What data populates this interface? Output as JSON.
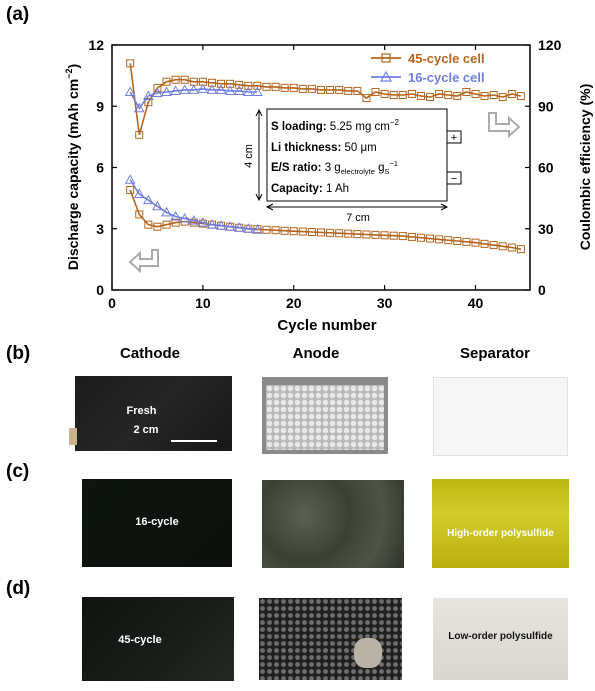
{
  "panels": {
    "a": "(a)",
    "b": "(b)",
    "c": "(c)",
    "d": "(d)"
  },
  "columns": [
    "Cathode",
    "Anode",
    "Separator"
  ],
  "photo_labels": {
    "cathode_b": "Fresh",
    "scalebar": "2 cm",
    "cathode_c": "16-cycle",
    "separator_c": "High-order polysulfide",
    "cathode_d": "45-cycle",
    "separator_d": "Low-order polysulfide"
  },
  "colors": {
    "cell45": "#B5651D",
    "cell16": "#6F7FE0",
    "separator_yellow": "#C9C21E",
    "dark": "#111111"
  },
  "inset": {
    "s_loading_label": "S loading:",
    "s_loading_value": "5.25 mg cm",
    "s_loading_exp": "−2",
    "li_label": "Li thickness:",
    "li_value": "50 μm",
    "es_label": "E/S ratio:",
    "es_value": "3 g",
    "es_sub1": "electrolyte",
    "es_mid": " g",
    "es_sub2": "S",
    "es_exp": "−1",
    "cap_label": "Capacity:",
    "cap_value": "1 Ah",
    "height_dim": "4 cm",
    "width_dim": "7 cm",
    "plus": "+",
    "minus": "−"
  },
  "chart_data": {
    "type": "line",
    "xlabel": "Cycle number",
    "ylabel_left": "Discharge capacity (mAh cm",
    "ylabel_left_exp": "−2",
    "ylabel_left_end": ")",
    "ylabel_right": "Coulombic efficiency (%)",
    "xlim": [
      0,
      46
    ],
    "ylim_left": [
      0,
      12
    ],
    "ylim_right": [
      0,
      120
    ],
    "xticks": [
      0,
      10,
      20,
      30,
      40
    ],
    "yticks_left": [
      0,
      3,
      6,
      9,
      12
    ],
    "yticks_right": [
      0,
      30,
      60,
      90,
      120
    ],
    "legend_position": "top-right",
    "series": [
      {
        "name": "45-cycle cell",
        "marker": "square",
        "x": [
          2,
          3,
          4,
          5,
          6,
          7,
          8,
          9,
          10,
          11,
          12,
          13,
          14,
          15,
          16,
          17,
          18,
          19,
          20,
          21,
          22,
          23,
          24,
          25,
          26,
          27,
          28,
          29,
          30,
          31,
          32,
          33,
          34,
          35,
          36,
          37,
          38,
          39,
          40,
          41,
          42,
          43,
          44,
          45
        ],
        "capacity": [
          4.9,
          3.7,
          3.2,
          3.1,
          3.2,
          3.3,
          3.35,
          3.3,
          3.25,
          3.2,
          3.15,
          3.1,
          3.05,
          3.0,
          2.98,
          2.95,
          2.93,
          2.9,
          2.88,
          2.86,
          2.84,
          2.82,
          2.8,
          2.78,
          2.76,
          2.74,
          2.72,
          2.7,
          2.68,
          2.66,
          2.64,
          2.6,
          2.56,
          2.52,
          2.48,
          2.44,
          2.4,
          2.36,
          2.32,
          2.26,
          2.2,
          2.14,
          2.08,
          2.0
        ],
        "ce": [
          111,
          76,
          92,
          99,
          102,
          103,
          103,
          102,
          102,
          101.5,
          101,
          101,
          100.5,
          100,
          100,
          99.5,
          99.5,
          99,
          99,
          98.5,
          98.5,
          98,
          98,
          98,
          97.5,
          97.5,
          94,
          97,
          96,
          95.5,
          95.5,
          96,
          95,
          94.5,
          96,
          95.5,
          95,
          97,
          96,
          95,
          95.5,
          94.5,
          96,
          95
        ]
      },
      {
        "name": "16-cycle cell",
        "marker": "triangle",
        "x": [
          2,
          3,
          4,
          5,
          6,
          7,
          8,
          9,
          10,
          11,
          12,
          13,
          14,
          15,
          16
        ],
        "capacity": [
          5.4,
          4.7,
          4.4,
          4.1,
          3.8,
          3.6,
          3.5,
          3.4,
          3.3,
          3.2,
          3.15,
          3.1,
          3.05,
          3.0,
          2.95
        ],
        "ce": [
          97,
          89,
          95,
          96.5,
          97,
          97.5,
          98,
          98,
          98.5,
          98,
          98,
          97.5,
          97.5,
          97,
          97
        ]
      }
    ]
  }
}
